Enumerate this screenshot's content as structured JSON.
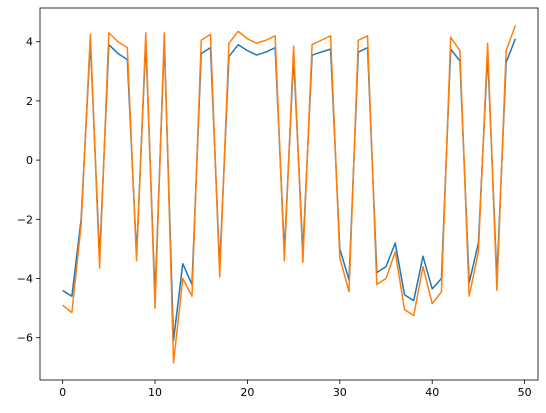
{
  "chart_data": {
    "type": "line",
    "x": [
      0,
      1,
      2,
      3,
      4,
      5,
      6,
      7,
      8,
      9,
      10,
      11,
      12,
      13,
      14,
      15,
      16,
      17,
      18,
      19,
      20,
      21,
      22,
      23,
      24,
      25,
      26,
      27,
      28,
      29,
      30,
      31,
      32,
      33,
      34,
      35,
      36,
      37,
      38,
      39,
      40,
      41,
      42,
      43,
      44,
      45,
      46,
      47,
      48,
      49
    ],
    "series": [
      {
        "color": "#1f77b4",
        "values": [
          -4.4,
          -4.6,
          -2.0,
          4.0,
          -3.3,
          3.9,
          3.6,
          3.4,
          -3.2,
          4.0,
          -4.6,
          4.0,
          -6.1,
          -3.5,
          -4.2,
          3.6,
          3.8,
          -3.6,
          3.5,
          3.9,
          3.7,
          3.55,
          3.65,
          3.8,
          -3.1,
          3.5,
          -3.1,
          3.55,
          3.65,
          3.75,
          -3.0,
          -4.05,
          3.65,
          3.8,
          -3.8,
          -3.6,
          -2.8,
          -4.55,
          -4.75,
          -3.25,
          -4.35,
          -4.0,
          3.75,
          3.35,
          -4.15,
          -2.8,
          3.6,
          -4.0,
          3.3,
          4.1
        ]
      },
      {
        "color": "#ff7f0e",
        "values": [
          -4.9,
          -5.15,
          -2.2,
          4.25,
          -3.65,
          4.3,
          4.0,
          3.8,
          -3.4,
          4.3,
          -5.0,
          4.3,
          -6.85,
          -4.0,
          -4.6,
          4.05,
          4.25,
          -3.95,
          3.95,
          4.35,
          4.1,
          3.95,
          4.05,
          4.2,
          -3.4,
          3.85,
          -3.45,
          3.9,
          4.05,
          4.2,
          -3.3,
          -4.45,
          4.05,
          4.2,
          -4.2,
          -4.0,
          -3.1,
          -5.05,
          -5.25,
          -3.6,
          -4.85,
          -4.45,
          4.15,
          3.7,
          -4.6,
          -3.1,
          3.95,
          -4.4,
          3.7,
          4.55
        ]
      }
    ],
    "xlim": [
      -2.45,
      51.45
    ],
    "ylim": [
      -7.43,
      5.14
    ],
    "xticks": [
      0,
      10,
      20,
      30,
      40,
      50
    ],
    "yticks": [
      {
        "value": -6,
        "label": "−6"
      },
      {
        "value": -4,
        "label": "−4"
      },
      {
        "value": -2,
        "label": "−2"
      },
      0,
      2,
      4
    ]
  }
}
